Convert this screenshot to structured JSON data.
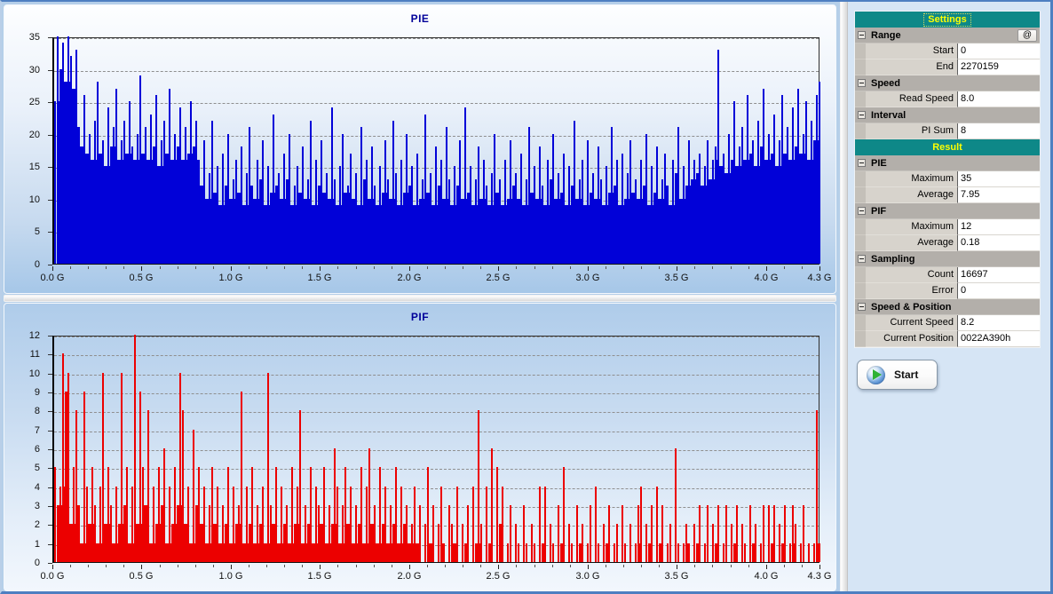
{
  "window": {
    "border_color": "#4e7fc1",
    "charts_bg": "#b5cfe9",
    "right_panel_bg": "#d6e5f5"
  },
  "chart_data": [
    {
      "id": "pie",
      "type": "bar",
      "title": "PIE",
      "bar_color": "#0101d8",
      "ylim": [
        0,
        35
      ],
      "yticks": [
        0,
        5,
        10,
        15,
        20,
        25,
        30,
        35
      ],
      "xlim": [
        0,
        4.3
      ],
      "xtick_values": [
        0,
        0.5,
        1.0,
        1.5,
        2.0,
        2.5,
        3.0,
        3.5,
        4.0,
        4.3
      ],
      "xtick_labels": [
        "0.0 G",
        "0.5 G",
        "1.0 G",
        "1.5 G",
        "2.0 G",
        "2.5 G",
        "3.0 G",
        "3.5 G",
        "4.0 G",
        "4.3 G"
      ],
      "grid": "dashed",
      "legend": "none",
      "values": [
        25,
        35,
        30,
        34,
        28,
        35,
        32,
        27,
        33,
        21,
        18,
        26,
        17,
        20,
        16,
        22,
        28,
        17,
        19,
        15,
        24,
        18,
        21,
        27,
        16,
        19,
        22,
        17,
        25,
        18,
        16,
        20,
        29,
        17,
        21,
        16,
        23,
        18,
        26,
        15,
        19,
        22,
        17,
        27,
        16,
        20,
        18,
        24,
        16,
        21,
        17,
        25,
        18,
        22,
        16,
        12,
        19,
        10,
        14,
        22,
        11,
        15,
        9,
        17,
        12,
        20,
        10,
        13,
        16,
        11,
        18,
        9,
        14,
        21,
        12,
        10,
        16,
        13,
        19,
        9,
        15,
        11,
        23,
        12,
        14,
        10,
        17,
        13,
        20,
        9,
        12,
        15,
        11,
        18,
        10,
        13,
        22,
        9,
        16,
        12,
        19,
        11,
        14,
        10,
        24,
        13,
        9,
        15,
        20,
        11,
        12,
        17,
        10,
        14,
        9,
        21,
        13,
        16,
        10,
        18,
        12,
        9,
        15,
        11,
        19,
        13,
        10,
        22,
        14,
        9,
        16,
        11,
        20,
        12,
        15,
        9,
        17,
        10,
        13,
        23,
        11,
        14,
        9,
        18,
        12,
        16,
        10,
        21,
        13,
        9,
        15,
        12,
        19,
        10,
        24,
        11,
        15,
        9,
        13,
        18,
        10,
        16,
        12,
        9,
        14,
        20,
        11,
        13,
        9,
        16,
        10,
        19,
        12,
        14,
        10,
        17,
        9,
        13,
        21,
        11,
        15,
        10,
        18,
        12,
        9,
        16,
        13,
        20,
        10,
        14,
        11,
        17,
        9,
        15,
        12,
        22,
        10,
        13,
        16,
        9,
        19,
        11,
        14,
        10,
        18,
        13,
        9,
        15,
        11,
        21,
        12,
        16,
        9,
        17,
        10,
        14,
        19,
        11,
        13,
        10,
        16,
        12,
        20,
        9,
        15,
        11,
        18,
        10,
        13,
        17,
        12,
        9,
        16,
        14,
        21,
        10,
        15,
        12,
        19,
        13,
        16,
        14,
        17,
        12,
        15,
        19,
        13,
        16,
        18,
        33,
        15,
        17,
        14,
        20,
        16,
        25,
        15,
        18,
        21,
        16,
        26,
        17,
        19,
        15,
        22,
        18,
        27,
        16,
        20,
        17,
        23,
        15,
        19,
        26,
        17,
        21,
        16,
        24,
        18,
        27,
        17,
        20,
        25,
        16,
        22,
        19,
        26,
        28
      ]
    },
    {
      "id": "pif",
      "type": "bar",
      "title": "PIF",
      "bar_color": "#ec0000",
      "ylim": [
        0,
        12
      ],
      "yticks": [
        0,
        1,
        2,
        3,
        4,
        5,
        6,
        7,
        8,
        9,
        10,
        11,
        12
      ],
      "xlim": [
        0,
        4.3
      ],
      "xtick_values": [
        0,
        0.5,
        1.0,
        1.5,
        2.0,
        2.5,
        3.0,
        3.5,
        4.0,
        4.3
      ],
      "xtick_labels": [
        "0.0 G",
        "0.5 G",
        "1.0 G",
        "1.5 G",
        "2.0 G",
        "2.5 G",
        "3.0 G",
        "3.5 G",
        "4.0 G",
        "4.3 G"
      ],
      "grid": "dashed",
      "legend": "none",
      "values": [
        5,
        3,
        4,
        11,
        9,
        10,
        2,
        5,
        8,
        3,
        1,
        9,
        4,
        2,
        5,
        3,
        1,
        4,
        10,
        2,
        5,
        3,
        1,
        4,
        2,
        10,
        3,
        5,
        1,
        4,
        12,
        2,
        9,
        5,
        3,
        8,
        1,
        4,
        2,
        5,
        3,
        6,
        1,
        4,
        2,
        5,
        3,
        10,
        8,
        2,
        4,
        1,
        7,
        3,
        5,
        2,
        4,
        1,
        3,
        5,
        2,
        4,
        1,
        3,
        2,
        5,
        1,
        4,
        2,
        3,
        9,
        1,
        4,
        2,
        5,
        1,
        3,
        2,
        4,
        1,
        10,
        3,
        2,
        5,
        1,
        4,
        2,
        3,
        1,
        5,
        2,
        4,
        8,
        1,
        3,
        2,
        5,
        1,
        4,
        3,
        2,
        5,
        1,
        3,
        2,
        6,
        4,
        1,
        3,
        5,
        2,
        4,
        1,
        3,
        2,
        5,
        1,
        4,
        6,
        2,
        3,
        1,
        5,
        2,
        4,
        1,
        3,
        2,
        5,
        1,
        4,
        2,
        3,
        1,
        2,
        4,
        1,
        3,
        0,
        2,
        5,
        1,
        3,
        0,
        2,
        4,
        1,
        0,
        3,
        2,
        1,
        4,
        0,
        2,
        1,
        3,
        0,
        4,
        1,
        8,
        2,
        0,
        4,
        1,
        6,
        0,
        5,
        2,
        4,
        0,
        1,
        3,
        0,
        2,
        1,
        0,
        3,
        1,
        0,
        2,
        1,
        0,
        4,
        1,
        4,
        0,
        2,
        1,
        0,
        3,
        1,
        5,
        0,
        2,
        1,
        0,
        3,
        1,
        2,
        0,
        1,
        3,
        0,
        4,
        1,
        0,
        2,
        1,
        3,
        0,
        1,
        2,
        0,
        3,
        1,
        0,
        2,
        0,
        1,
        3,
        4,
        0,
        2,
        1,
        3,
        0,
        4,
        1,
        3,
        0,
        1,
        2,
        0,
        6,
        1,
        0,
        1,
        2,
        1,
        0,
        2,
        1,
        3,
        0,
        1,
        3,
        0,
        2,
        1,
        3,
        0,
        1,
        3,
        0,
        2,
        1,
        3,
        0,
        2,
        1,
        0,
        3,
        1,
        2,
        0,
        1,
        3,
        0,
        3,
        1,
        3,
        0,
        2,
        1,
        3,
        0,
        1,
        3,
        2,
        0,
        1,
        3,
        0,
        1,
        0,
        1,
        8,
        1
      ]
    }
  ],
  "settings_panel": {
    "header_bg": "#0e8888",
    "header_text_color": "#ffff00",
    "rows": [
      {
        "type": "header",
        "label": "Settings",
        "focused": true
      },
      {
        "type": "section",
        "label": "Range",
        "button": "@"
      },
      {
        "type": "field",
        "label": "Start",
        "value": "0",
        "editable": true
      },
      {
        "type": "field",
        "label": "End",
        "value": "2270159",
        "editable": true
      },
      {
        "type": "section",
        "label": "Speed"
      },
      {
        "type": "field",
        "label": "Read Speed",
        "value": "8.0",
        "editable": true
      },
      {
        "type": "section",
        "label": "Interval"
      },
      {
        "type": "field",
        "label": "PI Sum",
        "value": "8",
        "editable": true
      },
      {
        "type": "header",
        "label": "Result"
      },
      {
        "type": "section",
        "label": "PIE"
      },
      {
        "type": "field",
        "label": "Maximum",
        "value": "35",
        "editable": false
      },
      {
        "type": "field",
        "label": "Average",
        "value": "7.95",
        "editable": false
      },
      {
        "type": "section",
        "label": "PIF"
      },
      {
        "type": "field",
        "label": "Maximum",
        "value": "12",
        "editable": false
      },
      {
        "type": "field",
        "label": "Average",
        "value": "0.18",
        "editable": false
      },
      {
        "type": "section",
        "label": "Sampling"
      },
      {
        "type": "field",
        "label": "Count",
        "value": "16697",
        "editable": false
      },
      {
        "type": "field",
        "label": "Error",
        "value": "0",
        "editable": false
      },
      {
        "type": "section",
        "label": "Speed & Position"
      },
      {
        "type": "field",
        "label": "Current Speed",
        "value": "8.2",
        "editable": false
      },
      {
        "type": "field",
        "label": "Current Position",
        "value": "0022A390h",
        "editable": false
      }
    ],
    "start_button": {
      "label": "Start"
    }
  }
}
